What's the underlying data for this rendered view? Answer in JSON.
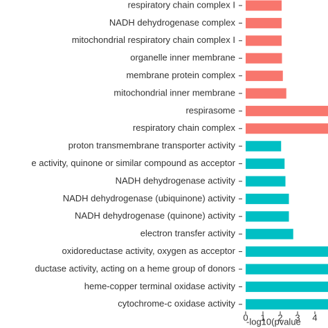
{
  "chart_data": {
    "type": "barh",
    "xlabel": "-log10(pvalue",
    "categories": [
      "respiratory chain complex I",
      "NADH dehydrogenase complex",
      "mitochondrial respiratory chain complex I",
      "organelle inner membrane",
      "membrane protein complex",
      "mitochondrial inner membrane",
      "respirasome",
      "respiratory chain complex",
      "proton transmembrane transporter activity",
      "e activity, quinone or similar compound as acceptor",
      "NADH dehydrogenase activity",
      "NADH dehydrogenase (ubiquinone) activity",
      "NADH dehydrogenase (quinone) activity",
      "electron transfer activity",
      "oxidoreductase activity, oxygen as acceptor",
      "ductase activity, acting on a heme group of donors",
      "heme-copper terminal oxidase activity",
      "cytochrome-c oxidase activity"
    ],
    "values": [
      2.08,
      2.08,
      2.08,
      2.1,
      2.15,
      2.35,
      5,
      5,
      2.05,
      2.25,
      2.3,
      2.5,
      2.5,
      2.75,
      5,
      5,
      5,
      5
    ],
    "colors": [
      "#F8766D",
      "#F8766D",
      "#F8766D",
      "#F8766D",
      "#F8766D",
      "#F8766D",
      "#F8766D",
      "#F8766D",
      "#00BFC4",
      "#00BFC4",
      "#00BFC4",
      "#00BFC4",
      "#00BFC4",
      "#00BFC4",
      "#00BFC4",
      "#00BFC4",
      "#00BFC4",
      "#00BFC4"
    ],
    "xlim": [
      -0.2,
      4.76
    ],
    "xticks": [
      0,
      1,
      2,
      3,
      4
    ]
  }
}
